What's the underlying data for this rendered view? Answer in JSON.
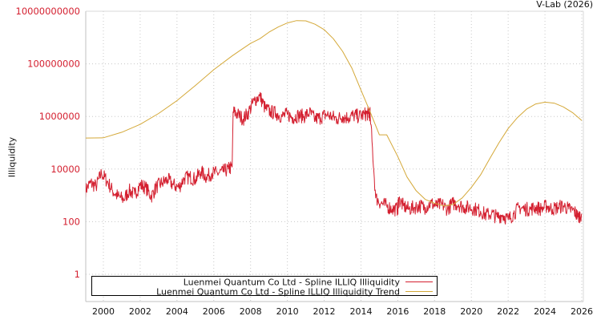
{
  "header": {
    "credit": "V-Lab (2026)"
  },
  "chart_data": {
    "type": "line",
    "title": "",
    "xlabel": "",
    "ylabel": "Illiquidity",
    "yscale": "log",
    "ylim": [
      0.2,
      10000000000
    ],
    "xlim": [
      1999.0,
      2026.1
    ],
    "grid": true,
    "legend_position": "bottom-left inside plot",
    "y_ticks": [
      {
        "value": 10000000000,
        "label": "10000000000"
      },
      {
        "value": 100000000,
        "label": "100000000"
      },
      {
        "value": 1000000,
        "label": "1000000"
      },
      {
        "value": 10000,
        "label": "10000"
      },
      {
        "value": 100,
        "label": "100"
      },
      {
        "value": 1,
        "label": "1"
      }
    ],
    "x_ticks": [
      "2000",
      "2002",
      "2004",
      "2006",
      "2008",
      "2010",
      "2012",
      "2014",
      "2016",
      "2018",
      "2020",
      "2022",
      "2024",
      "2026"
    ],
    "series": [
      {
        "name": "Luenmei Quantum Co Ltd - Spline ILLIQ Illiquidity",
        "color": "#d42030",
        "x": [
          1999.0,
          1999.3,
          1999.6,
          1999.9,
          2000.2,
          2000.5,
          2000.8,
          2001.1,
          2001.4,
          2001.7,
          2002.0,
          2002.3,
          2002.6,
          2002.9,
          2003.2,
          2003.5,
          2003.8,
          2004.1,
          2004.4,
          2004.7,
          2005.0,
          2005.3,
          2005.6,
          2005.9,
          2006.2,
          2006.5,
          2006.8,
          2007.0,
          2007.05,
          2007.3,
          2007.6,
          2007.9,
          2008.2,
          2008.5,
          2008.8,
          2009.1,
          2009.4,
          2009.7,
          2010.0,
          2010.3,
          2010.6,
          2010.9,
          2011.2,
          2011.5,
          2011.8,
          2012.1,
          2012.4,
          2012.7,
          2013.0,
          2013.3,
          2013.6,
          2013.9,
          2014.2,
          2014.4,
          2014.5,
          2014.8,
          2015.1,
          2015.4,
          2015.7,
          2016.0,
          2016.05,
          2016.3,
          2016.6,
          2016.9,
          2017.2,
          2017.5,
          2017.8,
          2018.1,
          2018.4,
          2018.7,
          2019.0,
          2019.3,
          2019.6,
          2019.9,
          2020.2,
          2020.5,
          2020.8,
          2021.1,
          2021.4,
          2021.7,
          2022.0,
          2022.3,
          2022.6,
          2022.9,
          2023.2,
          2023.5,
          2023.8,
          2024.1,
          2024.4,
          2024.7,
          2025.0,
          2025.3,
          2025.6,
          2025.8,
          2026.0
        ],
        "values": [
          1500,
          3000,
          2200,
          7000,
          3500,
          1500,
          900,
          700,
          1500,
          1100,
          2500,
          2000,
          900,
          2200,
          3000,
          4000,
          2500,
          2000,
          4500,
          5000,
          4000,
          8000,
          5000,
          7000,
          7000,
          8000,
          10000,
          12000,
          1500000,
          1200000,
          800000,
          1500000,
          4000000,
          6000000,
          2000000,
          1500000,
          1300000,
          1000000,
          1200000,
          900000,
          1100000,
          1000000,
          1400000,
          800000,
          900000,
          1200000,
          1000000,
          800000,
          1000000,
          900000,
          1100000,
          1000000,
          1200000,
          1300000,
          1200000,
          800,
          500,
          400,
          300,
          300,
          700,
          400,
          300,
          350,
          400,
          350,
          500,
          400,
          450,
          300,
          500,
          450,
          350,
          350,
          300,
          250,
          180,
          200,
          150,
          180,
          120,
          200,
          350,
          300,
          300,
          350,
          300,
          400,
          300,
          350,
          400,
          300,
          250,
          150,
          200
        ]
      },
      {
        "name": "Luenmei Quantum Co Ltd - Spline ILLIQ Illiquidity Trend",
        "color": "#d4a838",
        "x": [
          1999.0,
          2000.0,
          2001.0,
          2002.0,
          2003.0,
          2004.0,
          2005.0,
          2006.0,
          2007.0,
          2007.5,
          2008.0,
          2008.5,
          2009.0,
          2009.5,
          2010.0,
          2010.5,
          2011.0,
          2011.5,
          2012.0,
          2012.5,
          2013.0,
          2013.5,
          2014.0,
          2014.5,
          2015.0,
          2015.4,
          2016.0,
          2016.5,
          2017.0,
          2017.5,
          2018.0,
          2018.5,
          2019.0,
          2019.5,
          2020.0,
          2020.5,
          2021.0,
          2021.5,
          2022.0,
          2022.5,
          2023.0,
          2023.5,
          2024.0,
          2024.5,
          2025.0,
          2025.5,
          2026.0
        ],
        "values": [
          150000,
          155000,
          250000,
          500000,
          1300000,
          4000000,
          15000000,
          60000000,
          200000000,
          350000000,
          600000000,
          900000000,
          1600000000,
          2500000000,
          3600000000,
          4400000000,
          4300000000,
          3200000000,
          2000000000,
          900000000,
          300000000,
          70000000,
          10000000,
          1500000,
          200000,
          200000,
          30000,
          5000,
          1500,
          700,
          500,
          400,
          450,
          800,
          2000,
          6000,
          25000,
          100000,
          350000,
          900000,
          1900000,
          3000000,
          3500000,
          3200000,
          2300000,
          1400000,
          700000
        ]
      }
    ]
  }
}
